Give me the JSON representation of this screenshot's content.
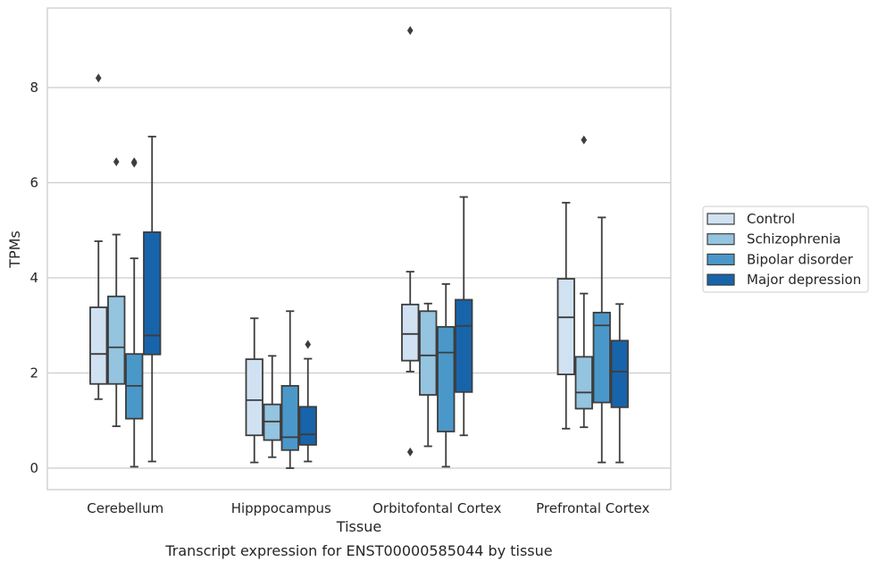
{
  "chart_data": {
    "type": "box",
    "title": "",
    "caption": "Transcript expression for ENST00000585044 by tissue",
    "xlabel": "Tissue",
    "ylabel": "TPMs",
    "ylim": [
      -0.45,
      9.7
    ],
    "yticks": [
      "0",
      "2",
      "4",
      "6",
      "8"
    ],
    "grid": "horizontal",
    "legend_position": "right",
    "categories": [
      "Cerebellum",
      "Hipppocampus",
      "Orbitofontal Cortex",
      "Prefrontal Cortex"
    ],
    "series": [
      {
        "name": "Control",
        "color": "#d0e1f2",
        "boxes": [
          {
            "whisker_low": 1.45,
            "q1": 1.77,
            "median": 2.4,
            "q3": 3.38,
            "whisker_high": 4.77,
            "outliers": [
              8.2
            ]
          },
          {
            "whisker_low": 0.12,
            "q1": 0.69,
            "median": 1.43,
            "q3": 2.29,
            "whisker_high": 3.15,
            "outliers": []
          },
          {
            "whisker_low": 2.03,
            "q1": 2.26,
            "median": 2.82,
            "q3": 3.44,
            "whisker_high": 4.13,
            "outliers": [
              0.34,
              9.2
            ]
          },
          {
            "whisker_low": 0.83,
            "q1": 1.97,
            "median": 3.17,
            "q3": 3.98,
            "whisker_high": 5.58,
            "outliers": []
          }
        ]
      },
      {
        "name": "Schizophrenia",
        "color": "#94c4df",
        "boxes": [
          {
            "whisker_low": 0.88,
            "q1": 1.77,
            "median": 2.54,
            "q3": 3.61,
            "whisker_high": 4.91,
            "outliers": [
              6.44
            ]
          },
          {
            "whisker_low": 0.23,
            "q1": 0.59,
            "median": 0.98,
            "q3": 1.34,
            "whisker_high": 2.36,
            "outliers": []
          },
          {
            "whisker_low": 0.46,
            "q1": 1.54,
            "median": 2.37,
            "q3": 3.3,
            "whisker_high": 3.46,
            "outliers": []
          },
          {
            "whisker_low": 0.86,
            "q1": 1.25,
            "median": 1.59,
            "q3": 2.34,
            "whisker_high": 3.67,
            "outliers": [
              6.9
            ]
          }
        ]
      },
      {
        "name": "Bipolar disorder",
        "color": "#4a98c9",
        "boxes": [
          {
            "whisker_low": 0.03,
            "q1": 1.04,
            "median": 1.73,
            "q3": 2.4,
            "whisker_high": 4.41,
            "outliers": [
              6.41,
              6.44
            ]
          },
          {
            "whisker_low": 0.0,
            "q1": 0.38,
            "median": 0.65,
            "q3": 1.73,
            "whisker_high": 3.3,
            "outliers": []
          },
          {
            "whisker_low": 0.03,
            "q1": 0.77,
            "median": 2.43,
            "q3": 2.97,
            "whisker_high": 3.87,
            "outliers": []
          },
          {
            "whisker_low": 0.12,
            "q1": 1.38,
            "median": 3.0,
            "q3": 3.27,
            "whisker_high": 5.27,
            "outliers": []
          }
        ]
      },
      {
        "name": "Major depression",
        "color": "#1764ab",
        "boxes": [
          {
            "whisker_low": 0.14,
            "q1": 2.39,
            "median": 2.79,
            "q3": 4.96,
            "whisker_high": 6.97,
            "outliers": []
          },
          {
            "whisker_low": 0.14,
            "q1": 0.49,
            "median": 0.71,
            "q3": 1.29,
            "whisker_high": 2.3,
            "outliers": [
              2.6
            ]
          },
          {
            "whisker_low": 0.69,
            "q1": 1.6,
            "median": 2.99,
            "q3": 3.54,
            "whisker_high": 5.7,
            "outliers": []
          },
          {
            "whisker_low": 0.12,
            "q1": 1.28,
            "median": 2.03,
            "q3": 2.68,
            "whisker_high": 3.45,
            "outliers": []
          }
        ]
      }
    ]
  }
}
